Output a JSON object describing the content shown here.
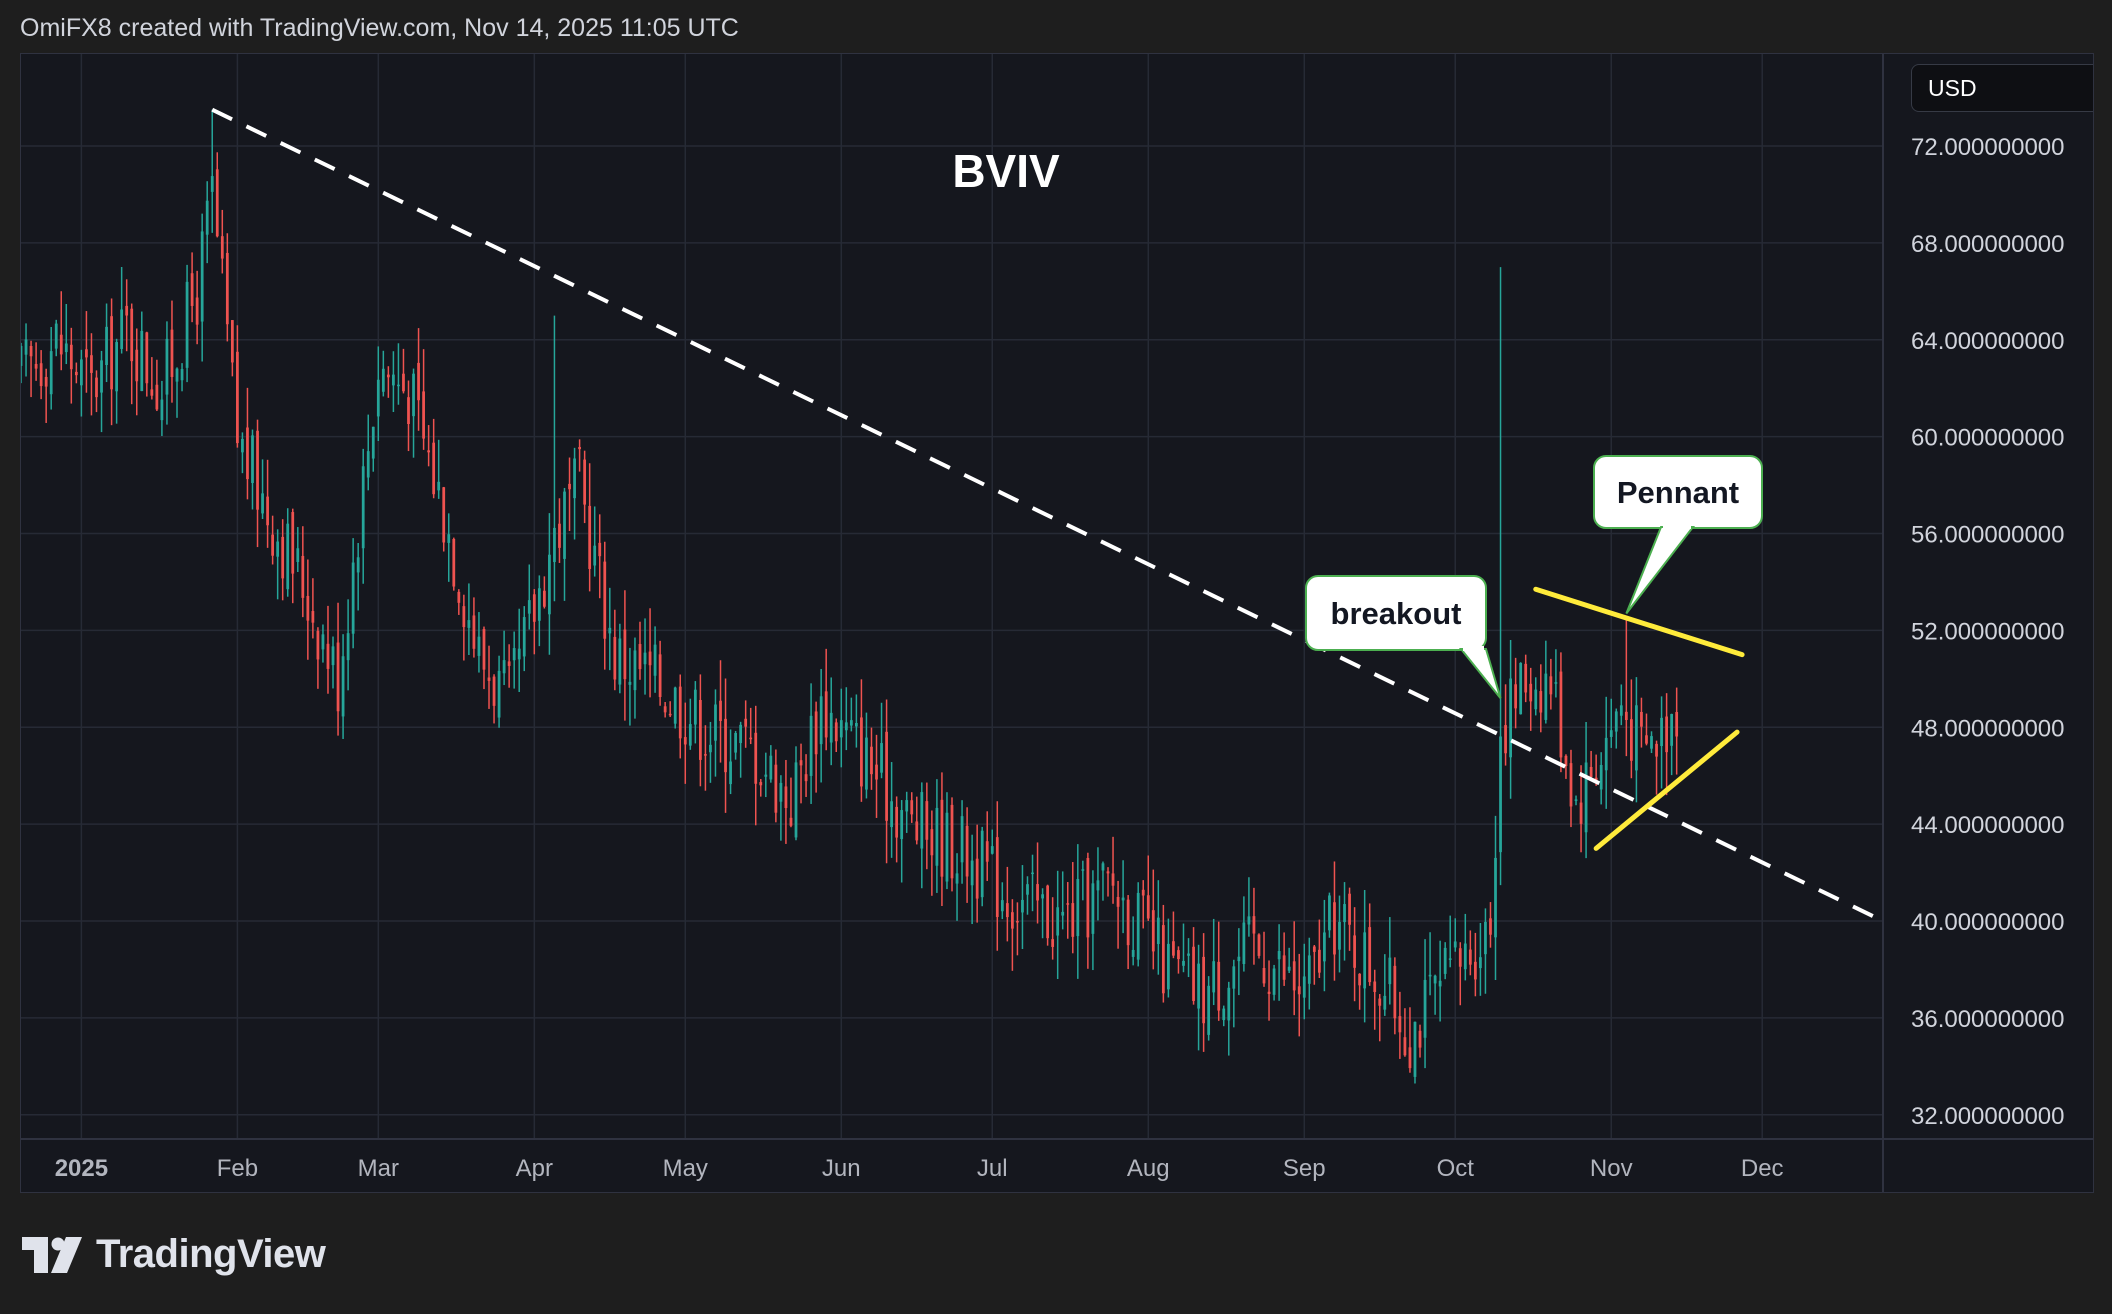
{
  "header": {
    "attribution": "OmiFX8 created with TradingView.com, Nov 14, 2025 11:05 UTC"
  },
  "toolbar": {
    "currency_label": "USD"
  },
  "footer": {
    "brand": "TradingView"
  },
  "chart_data": {
    "type": "candlestick",
    "title": "BVIV",
    "y_axis": {
      "ticks": [
        32,
        36,
        40,
        44,
        48,
        52,
        56,
        60,
        64,
        68,
        72
      ],
      "tick_labels": [
        "32.000000000",
        "36.000000000",
        "40.000000000",
        "44.000000000",
        "48.000000000",
        "52.000000000",
        "56.000000000",
        "60.000000000",
        "64.000000000",
        "68.000000000",
        "72.000000000"
      ],
      "range": [
        31.0,
        75.8
      ]
    },
    "x_axis": {
      "range": [
        "2024-12-20",
        "2025-12-25"
      ],
      "ticks": [
        {
          "date": "2025-01-01",
          "label": "2025",
          "bold": true
        },
        {
          "date": "2025-02-01",
          "label": "Feb"
        },
        {
          "date": "2025-03-01",
          "label": "Mar"
        },
        {
          "date": "2025-04-01",
          "label": "Apr"
        },
        {
          "date": "2025-05-01",
          "label": "May"
        },
        {
          "date": "2025-06-01",
          "label": "Jun"
        },
        {
          "date": "2025-07-01",
          "label": "Jul"
        },
        {
          "date": "2025-08-01",
          "label": "Aug"
        },
        {
          "date": "2025-09-01",
          "label": "Sep"
        },
        {
          "date": "2025-10-01",
          "label": "Oct"
        },
        {
          "date": "2025-11-01",
          "label": "Nov"
        },
        {
          "date": "2025-12-01",
          "label": "Dec"
        }
      ]
    },
    "colors": {
      "up": "#26a69a",
      "down": "#ef5350",
      "pattern": "#ffeb3b",
      "trendline": "#ffffff",
      "grid": "#262a35"
    },
    "series_close": [
      [
        "2024-12-20",
        62.5
      ],
      [
        "2024-12-27",
        64.0
      ],
      [
        "2025-01-03",
        62.0
      ],
      [
        "2025-01-10",
        64.5
      ],
      [
        "2025-01-17",
        62.0
      ],
      [
        "2025-01-24",
        66.0
      ],
      [
        "2025-01-27",
        70.0
      ],
      [
        "2025-02-01",
        60.0
      ],
      [
        "2025-02-07",
        57.0
      ],
      [
        "2025-02-14",
        54.0
      ],
      [
        "2025-02-21",
        50.0
      ],
      [
        "2025-03-01",
        63.0
      ],
      [
        "2025-03-07",
        62.0
      ],
      [
        "2025-03-14",
        57.0
      ],
      [
        "2025-03-21",
        51.0
      ],
      [
        "2025-03-27",
        49.0
      ],
      [
        "2025-04-05",
        56.0
      ],
      [
        "2025-04-10",
        58.0
      ],
      [
        "2025-04-17",
        51.0
      ],
      [
        "2025-04-25",
        50.0
      ],
      [
        "2025-05-05",
        48.0
      ],
      [
        "2025-05-15",
        47.0
      ],
      [
        "2025-05-22",
        45.0
      ],
      [
        "2025-05-28",
        49.0
      ],
      [
        "2025-06-05",
        47.0
      ],
      [
        "2025-06-15",
        44.0
      ],
      [
        "2025-06-25",
        43.0
      ],
      [
        "2025-07-05",
        41.0
      ],
      [
        "2025-07-15",
        40.0
      ],
      [
        "2025-07-25",
        41.5
      ],
      [
        "2025-08-05",
        38.0
      ],
      [
        "2025-08-12",
        37.0
      ],
      [
        "2025-08-22",
        39.0
      ],
      [
        "2025-09-01",
        37.0
      ],
      [
        "2025-09-07",
        40.0
      ],
      [
        "2025-09-15",
        38.0
      ],
      [
        "2025-09-22",
        35.5
      ],
      [
        "2025-10-01",
        38.0
      ],
      [
        "2025-10-08",
        40.0
      ],
      [
        "2025-10-10",
        48.0
      ],
      [
        "2025-10-15",
        50.0
      ],
      [
        "2025-10-20",
        50.0
      ],
      [
        "2025-10-25",
        45.0
      ],
      [
        "2025-10-30",
        47.0
      ],
      [
        "2025-11-03",
        49.0
      ],
      [
        "2025-11-07",
        47.0
      ],
      [
        "2025-11-10",
        47.5
      ],
      [
        "2025-11-14",
        49.0
      ]
    ],
    "spikes": [
      {
        "date": "2025-01-27",
        "high": 73.5
      },
      {
        "date": "2025-04-05",
        "high": 65.0
      },
      {
        "date": "2025-10-10",
        "high": 67.0
      },
      {
        "date": "2025-11-04",
        "high": 52.5
      }
    ],
    "lines": [
      {
        "type": "dashed-trendline",
        "from": [
          "2025-01-27",
          73.5
        ],
        "to": [
          "2025-12-25",
          40.0
        ]
      },
      {
        "type": "pennant-upper",
        "from": [
          "2025-10-17",
          53.7
        ],
        "to": [
          "2025-11-27",
          51.0
        ]
      },
      {
        "type": "pennant-lower",
        "from": [
          "2025-10-29",
          43.0
        ],
        "to": [
          "2025-11-26",
          47.8
        ]
      }
    ],
    "annotations": [
      {
        "text": "breakout",
        "anchor": [
          "2025-10-10",
          49.2
        ]
      },
      {
        "text": "Pennant",
        "anchor": [
          "2025-11-04",
          52.7
        ]
      }
    ]
  }
}
